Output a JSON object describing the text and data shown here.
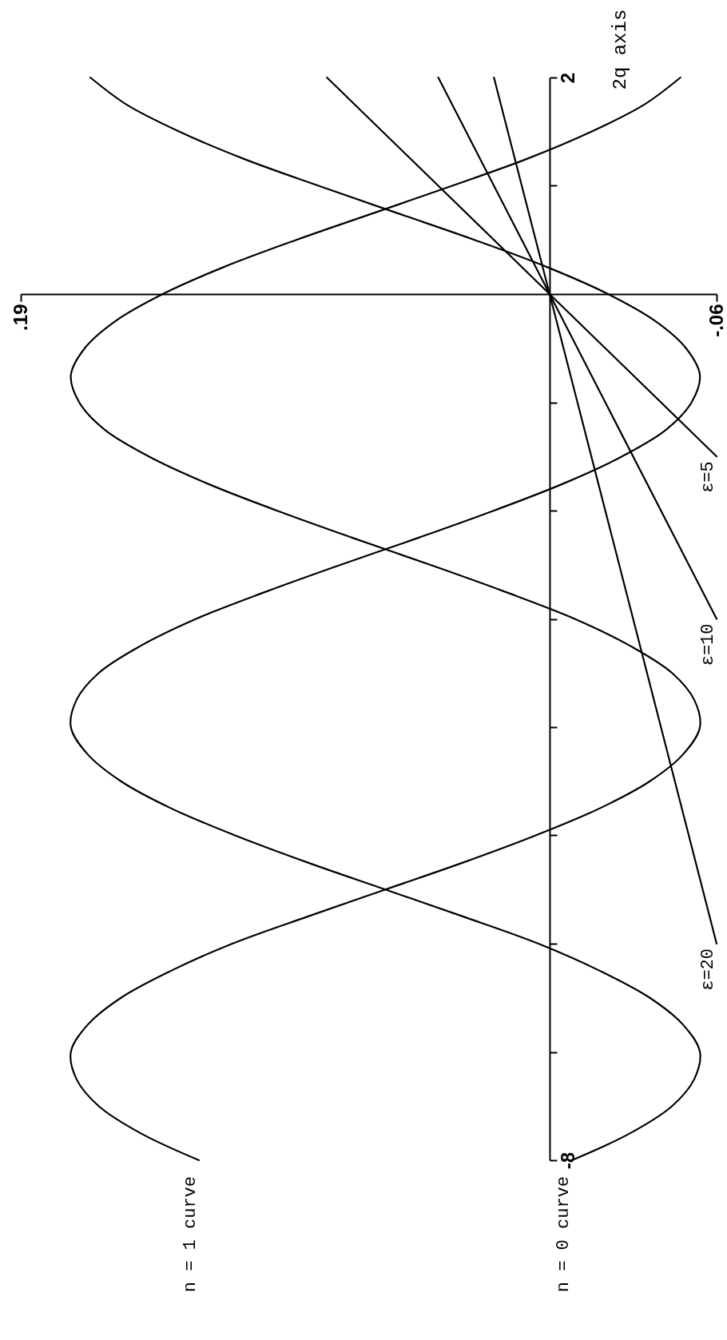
{
  "chart_data": {
    "type": "line",
    "ylabel": "2q axis",
    "xlim": [
      0.19,
      -0.06
    ],
    "xticks": [
      {
        "value": 0.19,
        "label": ".19"
      },
      {
        "value": -0.06,
        "label": "-.06"
      }
    ],
    "ylim": [
      -8,
      2
    ],
    "yticks": [
      -8,
      {
        "value": -7,
        "label": null
      },
      {
        "value": -6,
        "label": null
      },
      {
        "value": -5,
        "label": null
      },
      {
        "value": -4,
        "label": null
      },
      {
        "value": -3,
        "label": null
      },
      {
        "value": -2,
        "label": null
      },
      {
        "value": -1,
        "label": null
      },
      {
        "value": 1,
        "label": null
      },
      2
    ],
    "series": [
      {
        "name": "n = 1 curve",
        "color": "#000000",
        "x": [
          0.126,
          0.147,
          0.162,
          0.17,
          0.172,
          0.166,
          0.154,
          0.136,
          0.114,
          0.087,
          0.059,
          0.031,
          0.005,
          -0.018,
          -0.036,
          -0.048,
          -0.054,
          -0.052,
          -0.044,
          -0.029,
          -0.009,
          0.016,
          0.043,
          0.071,
          0.098,
          0.123,
          0.144,
          0.16,
          0.169,
          0.172,
          0.167,
          0.156,
          0.139,
          0.117,
          0.091,
          0.063,
          0.035,
          0.008,
          -0.015,
          -0.034,
          -0.047
        ],
        "values": [
          -8,
          -7.75,
          -7.5,
          -7.25,
          -7,
          -6.75,
          -6.5,
          -6.25,
          -6,
          -5.75,
          -5.5,
          -5.25,
          -5,
          -4.75,
          -4.5,
          -4.25,
          -4,
          -3.75,
          -3.5,
          -3.25,
          -3,
          -2.75,
          -2.5,
          -2.25,
          -2,
          -1.75,
          -1.5,
          -1.25,
          -1,
          -0.75,
          -0.5,
          -0.25,
          0,
          0.25,
          0.5,
          0.75,
          1,
          1.25,
          1.5,
          1.75,
          2
        ]
      },
      {
        "name": "n = 0 curve",
        "color": "#000000",
        "x": [
          -0.008,
          -0.029,
          -0.044,
          -0.052,
          -0.054,
          -0.048,
          -0.036,
          -0.018,
          0.004,
          0.031,
          0.059,
          0.087,
          0.113,
          0.136,
          0.154,
          0.166,
          0.172,
          0.17,
          0.162,
          0.147,
          0.127,
          0.102,
          0.075,
          0.047,
          0.02,
          -0.005,
          -0.026,
          -0.042,
          -0.051,
          -0.054,
          -0.049,
          -0.038,
          -0.021,
          0.001,
          0.027,
          0.055,
          0.083,
          0.11,
          0.133,
          0.152,
          0.165
        ],
        "values": [
          -8,
          -7.75,
          -7.5,
          -7.25,
          -7,
          -6.75,
          -6.5,
          -6.25,
          -6,
          -5.75,
          -5.5,
          -5.25,
          -5,
          -4.75,
          -4.5,
          -4.25,
          -4,
          -3.75,
          -3.5,
          -3.25,
          -3,
          -2.75,
          -2.5,
          -2.25,
          -2,
          -1.75,
          -1.5,
          -1.25,
          -1,
          -0.75,
          -0.5,
          -0.25,
          0,
          0.25,
          0.5,
          0.75,
          1,
          1.25,
          1.5,
          1.75,
          2
        ]
      },
      {
        "name": "ε=5",
        "color": "#000000",
        "x": [
          -0.06,
          0.08
        ],
        "values": [
          -1.5,
          2
        ]
      },
      {
        "name": "ε=10",
        "color": "#000000",
        "x": [
          -0.06,
          0.04
        ],
        "values": [
          -3,
          2
        ]
      },
      {
        "name": "ε=20",
        "color": "#000000",
        "x": [
          -0.06,
          0.02
        ],
        "values": [
          -6,
          2
        ]
      }
    ]
  }
}
